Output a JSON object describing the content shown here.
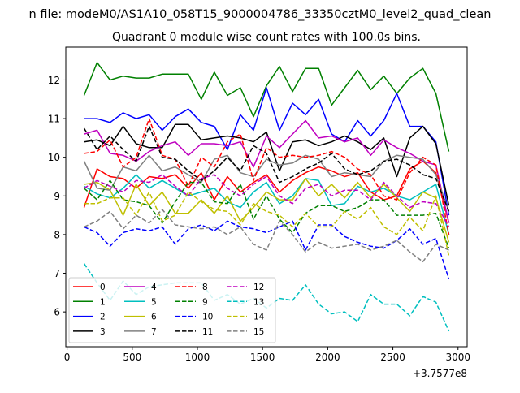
{
  "figure": {
    "suptitle": "n file: modeM0/AS1A10_058T15_9000004786_33350cztM0_level2_quad_clean",
    "title": "Quadrant 0 module wise count rates with 100.0s bins.",
    "offset_text": "+3.7577e8"
  },
  "chart_data": {
    "type": "line",
    "title": "Quadrant 0 module wise count rates with 100.0s bins.",
    "xlabel": "",
    "ylabel": "",
    "x_offset": "+3.7577e8",
    "xlim": [
      -10,
      3070
    ],
    "ylim": [
      5.1,
      12.85
    ],
    "xticks": [
      0,
      500,
      1000,
      1500,
      2000,
      2500,
      3000
    ],
    "yticks": [
      6,
      7,
      8,
      9,
      10,
      11,
      12
    ],
    "grid": false,
    "legend": {
      "position": "lower-left",
      "columns": 4
    },
    "x": [
      130,
      230,
      330,
      430,
      530,
      630,
      730,
      830,
      930,
      1030,
      1130,
      1230,
      1330,
      1430,
      1530,
      1630,
      1730,
      1830,
      1930,
      2030,
      2130,
      2230,
      2330,
      2430,
      2530,
      2630,
      2730,
      2830,
      2930
    ],
    "series": [
      {
        "name": "0",
        "color": "#ff0000",
        "dash": "solid",
        "values": [
          8.7,
          9.7,
          9.5,
          9.45,
          9.2,
          9.5,
          9.45,
          9.55,
          9.2,
          9.6,
          8.9,
          9.5,
          9.1,
          9.35,
          9.55,
          9.1,
          9.4,
          9.6,
          9.75,
          9.65,
          9.5,
          9.6,
          9.1,
          8.9,
          9.0,
          9.7,
          9.9,
          9.6,
          8.3
        ]
      },
      {
        "name": "1",
        "color": "#008000",
        "dash": "solid",
        "values": [
          11.6,
          12.45,
          12.0,
          12.1,
          12.05,
          12.05,
          12.15,
          12.15,
          12.15,
          11.5,
          12.2,
          11.6,
          11.8,
          11.05,
          11.85,
          12.35,
          11.7,
          12.3,
          12.3,
          11.35,
          11.8,
          12.25,
          11.75,
          12.1,
          11.65,
          12.05,
          12.3,
          11.65,
          10.15
        ]
      },
      {
        "name": "2",
        "color": "#0000ff",
        "dash": "solid",
        "values": [
          11.0,
          11.0,
          10.9,
          11.15,
          11.0,
          11.1,
          10.7,
          11.05,
          11.25,
          10.9,
          10.8,
          10.2,
          11.1,
          10.7,
          11.8,
          10.7,
          11.4,
          11.1,
          11.5,
          10.6,
          10.4,
          10.95,
          10.55,
          10.95,
          11.65,
          10.8,
          10.8,
          10.4,
          8.5
        ]
      },
      {
        "name": "3",
        "color": "#000000",
        "dash": "solid",
        "values": [
          10.4,
          10.45,
          10.3,
          10.8,
          10.35,
          10.25,
          10.25,
          10.85,
          10.85,
          10.45,
          10.5,
          10.55,
          10.5,
          10.4,
          10.65,
          9.65,
          10.4,
          10.45,
          10.3,
          10.4,
          10.55,
          10.4,
          10.2,
          10.5,
          9.5,
          10.5,
          10.8,
          10.35,
          8.75
        ]
      },
      {
        "name": "4",
        "color": "#bf00bf",
        "dash": "solid",
        "values": [
          10.6,
          10.7,
          10.1,
          10.05,
          9.9,
          10.15,
          10.3,
          10.4,
          10.05,
          10.35,
          10.35,
          10.3,
          10.4,
          9.75,
          10.55,
          10.25,
          10.6,
          10.95,
          10.5,
          10.55,
          10.4,
          10.5,
          10.05,
          10.45,
          10.25,
          10.1,
          9.9,
          9.8,
          8.3
        ]
      },
      {
        "name": "5",
        "color": "#00bfbf",
        "dash": "solid",
        "values": [
          9.25,
          9.05,
          8.95,
          9.2,
          9.55,
          9.2,
          9.4,
          9.2,
          9.0,
          9.1,
          9.2,
          8.85,
          8.7,
          9.1,
          9.35,
          8.8,
          9.0,
          9.45,
          9.4,
          8.75,
          8.8,
          9.25,
          9.1,
          9.2,
          9.0,
          8.9,
          9.1,
          9.3,
          8.0
        ]
      },
      {
        "name": "6",
        "color": "#bfbf00",
        "dash": "solid",
        "values": [
          9.3,
          9.35,
          9.15,
          8.5,
          9.3,
          8.75,
          9.1,
          8.55,
          8.55,
          8.9,
          8.55,
          9.0,
          8.35,
          8.7,
          9.1,
          8.9,
          8.9,
          9.45,
          9.0,
          9.3,
          8.95,
          9.35,
          8.95,
          9.3,
          8.95,
          8.6,
          9.1,
          8.95,
          7.8
        ]
      },
      {
        "name": "7",
        "color": "#808080",
        "dash": "solid",
        "values": [
          9.9,
          9.2,
          9.15,
          9.75,
          9.65,
          10.05,
          9.65,
          9.75,
          9.55,
          9.35,
          9.95,
          10.05,
          9.6,
          9.5,
          9.95,
          9.8,
          9.85,
          10.05,
          9.95,
          9.5,
          9.6,
          9.55,
          9.5,
          9.9,
          10.05,
          10.0,
          9.95,
          9.55,
          8.6
        ]
      },
      {
        "name": "8",
        "color": "#ff0000",
        "dash": "dash",
        "values": [
          10.1,
          10.15,
          10.45,
          9.75,
          10.0,
          11.0,
          10.05,
          9.95,
          9.25,
          10.0,
          9.75,
          10.4,
          10.6,
          9.4,
          10.25,
          10.0,
          10.05,
          10.0,
          10.05,
          10.15,
          10.0,
          9.7,
          9.55,
          9.0,
          8.9,
          9.6,
          10.0,
          9.8,
          8.0
        ]
      },
      {
        "name": "9",
        "color": "#008000",
        "dash": "dash",
        "values": [
          9.2,
          8.9,
          9.4,
          8.9,
          8.85,
          8.75,
          8.3,
          8.85,
          9.35,
          9.35,
          8.85,
          8.8,
          9.3,
          8.4,
          9.0,
          8.4,
          8.05,
          8.55,
          8.75,
          8.75,
          8.6,
          8.7,
          8.9,
          8.9,
          8.5,
          8.5,
          8.5,
          8.55,
          7.65
        ]
      },
      {
        "name": "10",
        "color": "#0000ff",
        "dash": "dash",
        "values": [
          8.2,
          8.05,
          7.7,
          8.05,
          8.15,
          8.1,
          8.2,
          7.75,
          8.15,
          8.25,
          8.1,
          8.35,
          8.2,
          8.15,
          8.05,
          8.2,
          8.35,
          7.6,
          8.25,
          8.25,
          7.95,
          7.8,
          7.7,
          7.65,
          7.85,
          8.15,
          7.75,
          7.9,
          6.85
        ]
      },
      {
        "name": "11",
        "color": "#000000",
        "dash": "dash",
        "values": [
          10.75,
          10.2,
          10.55,
          10.2,
          9.9,
          10.8,
          10.0,
          9.95,
          9.65,
          9.4,
          9.65,
          10.0,
          9.65,
          10.3,
          10.1,
          9.35,
          9.5,
          9.7,
          9.85,
          10.1,
          9.7,
          9.55,
          9.65,
          9.9,
          9.95,
          9.8,
          9.55,
          9.45,
          8.6
        ]
      },
      {
        "name": "12",
        "color": "#bf00bf",
        "dash": "dash",
        "values": [
          9.2,
          9.4,
          9.25,
          9.1,
          9.4,
          9.35,
          9.55,
          9.25,
          9.0,
          9.45,
          9.55,
          9.2,
          9.0,
          9.3,
          9.5,
          9.0,
          8.8,
          9.2,
          9.3,
          9.0,
          9.15,
          9.15,
          8.9,
          9.35,
          9.0,
          8.7,
          8.85,
          8.8,
          8.2
        ]
      },
      {
        "name": "13",
        "color": "#00bfbf",
        "dash": "dash",
        "values": [
          7.25,
          6.75,
          6.3,
          6.8,
          6.45,
          6.65,
          6.7,
          6.75,
          6.75,
          6.75,
          6.3,
          6.45,
          6.2,
          6.35,
          6.1,
          6.35,
          6.3,
          6.7,
          6.2,
          5.95,
          6.0,
          5.75,
          6.45,
          6.2,
          6.2,
          5.9,
          6.4,
          6.25,
          5.5
        ]
      },
      {
        "name": "14",
        "color": "#bfbf00",
        "dash": "dash",
        "values": [
          8.8,
          8.8,
          8.95,
          8.95,
          8.5,
          9.1,
          8.35,
          8.5,
          9.1,
          8.85,
          8.65,
          8.6,
          8.25,
          8.8,
          8.6,
          8.5,
          8.2,
          8.55,
          8.2,
          8.2,
          8.6,
          8.4,
          8.7,
          8.2,
          8.0,
          8.45,
          8.1,
          9.0,
          7.45
        ]
      },
      {
        "name": "15",
        "color": "#808080",
        "dash": "dash",
        "values": [
          8.2,
          8.35,
          8.6,
          8.15,
          8.5,
          8.3,
          8.65,
          8.25,
          8.2,
          8.15,
          8.2,
          8.0,
          8.2,
          7.75,
          7.6,
          8.35,
          8.0,
          7.55,
          7.8,
          7.65,
          7.7,
          7.75,
          7.6,
          7.7,
          7.85,
          7.55,
          7.3,
          7.75,
          7.6
        ]
      }
    ]
  }
}
